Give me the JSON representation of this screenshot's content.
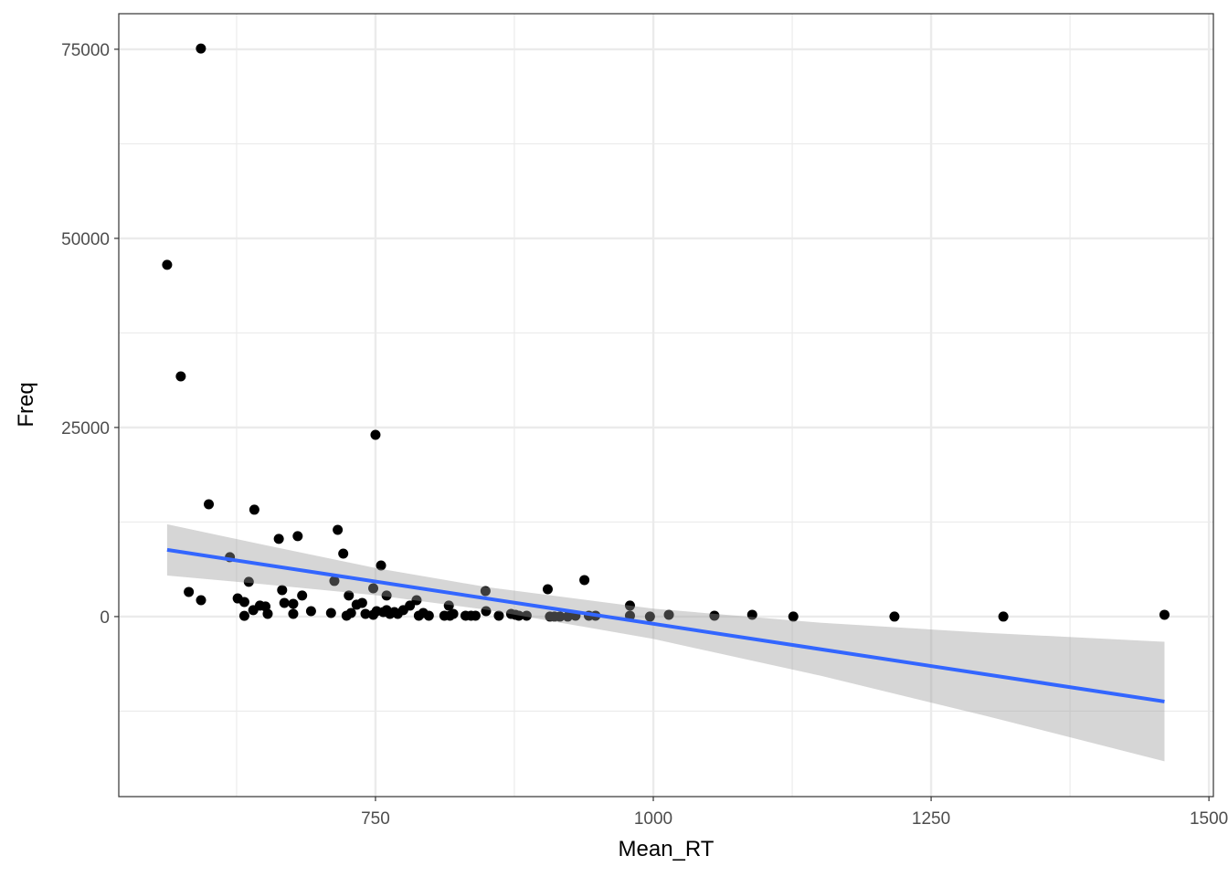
{
  "chart_data": {
    "type": "scatter",
    "title": "",
    "xlabel": "Mean_RT",
    "ylabel": "Freq",
    "xlim": [
      519,
      1504
    ],
    "ylim": [
      -23800,
      79700
    ],
    "x_ticks": [
      750,
      1000,
      1250,
      1500
    ],
    "x_tick_labels": [
      "750",
      "1000",
      "1250",
      "1500"
    ],
    "x_minor": [
      625,
      875,
      1125,
      1375
    ],
    "y_ticks": [
      0,
      25000,
      50000,
      75000
    ],
    "y_tick_labels": [
      "0",
      "25000",
      "50000",
      "75000"
    ],
    "y_minor": [
      -12500,
      12500,
      37500,
      62500
    ],
    "grid": true,
    "points": [
      [
        562.5,
        46500
      ],
      [
        574.8,
        31760
      ],
      [
        592.9,
        75100
      ],
      [
        582,
        3260
      ],
      [
        593,
        2170
      ],
      [
        600,
        14850
      ],
      [
        619,
        7850
      ],
      [
        626,
        2400
      ],
      [
        632,
        1930
      ],
      [
        632,
        100
      ],
      [
        636,
        4600
      ],
      [
        640,
        850
      ],
      [
        641,
        14130
      ],
      [
        646,
        1450
      ],
      [
        651,
        1330
      ],
      [
        653,
        360
      ],
      [
        663,
        10270
      ],
      [
        666,
        3500
      ],
      [
        668,
        1800
      ],
      [
        676,
        360
      ],
      [
        676,
        1690
      ],
      [
        680,
        10630
      ],
      [
        684,
        2780
      ],
      [
        692,
        720
      ],
      [
        710,
        480
      ],
      [
        713,
        4710
      ],
      [
        716,
        11470
      ],
      [
        721,
        8330
      ],
      [
        724,
        120
      ],
      [
        726,
        2780
      ],
      [
        728,
        480
      ],
      [
        733,
        1570
      ],
      [
        738,
        1810
      ],
      [
        741,
        360
      ],
      [
        748,
        3740
      ],
      [
        748,
        240
      ],
      [
        750,
        24030
      ],
      [
        751,
        720
      ],
      [
        755,
        6760
      ],
      [
        757,
        600
      ],
      [
        760,
        850
      ],
      [
        760,
        2780
      ],
      [
        763,
        360
      ],
      [
        767,
        600
      ],
      [
        770,
        360
      ],
      [
        775,
        850
      ],
      [
        781,
        1450
      ],
      [
        787,
        2170
      ],
      [
        789,
        120
      ],
      [
        793,
        480
      ],
      [
        798,
        120
      ],
      [
        812,
        120
      ],
      [
        816,
        1450
      ],
      [
        817,
        120
      ],
      [
        820,
        360
      ],
      [
        831,
        120
      ],
      [
        836,
        120
      ],
      [
        840,
        120
      ],
      [
        849,
        3380
      ],
      [
        849.5,
        720
      ],
      [
        861,
        120
      ],
      [
        872,
        360
      ],
      [
        876,
        240
      ],
      [
        879,
        120
      ],
      [
        886,
        120
      ],
      [
        905,
        3620
      ],
      [
        907,
        0
      ],
      [
        911,
        0
      ],
      [
        916,
        0
      ],
      [
        923,
        0
      ],
      [
        930,
        120
      ],
      [
        938,
        4830
      ],
      [
        942,
        120
      ],
      [
        948,
        120
      ],
      [
        979,
        1450
      ],
      [
        979,
        120
      ],
      [
        997,
        0
      ],
      [
        1014,
        240
      ],
      [
        1055,
        120
      ],
      [
        1089,
        240
      ],
      [
        1126,
        0
      ],
      [
        1217,
        0
      ],
      [
        1315,
        0
      ],
      [
        1460,
        240
      ]
    ],
    "fit": {
      "method": "lm",
      "color": "#3366FF",
      "x": [
        562.5,
        650,
        750,
        850,
        1000,
        1150,
        1300,
        1460
      ],
      "y": [
        8820,
        6865,
        4630,
        2397,
        -954,
        -4305,
        -7656,
        -11230
      ],
      "lower": [
        5430,
        4265,
        2830,
        900,
        -2954,
        -7805,
        -13156,
        -19130
      ],
      "upper": [
        12200,
        9465,
        6430,
        3900,
        1046,
        -805,
        -2156,
        -3330
      ]
    },
    "point_color": "#000000",
    "ribbon_color": "#999999"
  }
}
